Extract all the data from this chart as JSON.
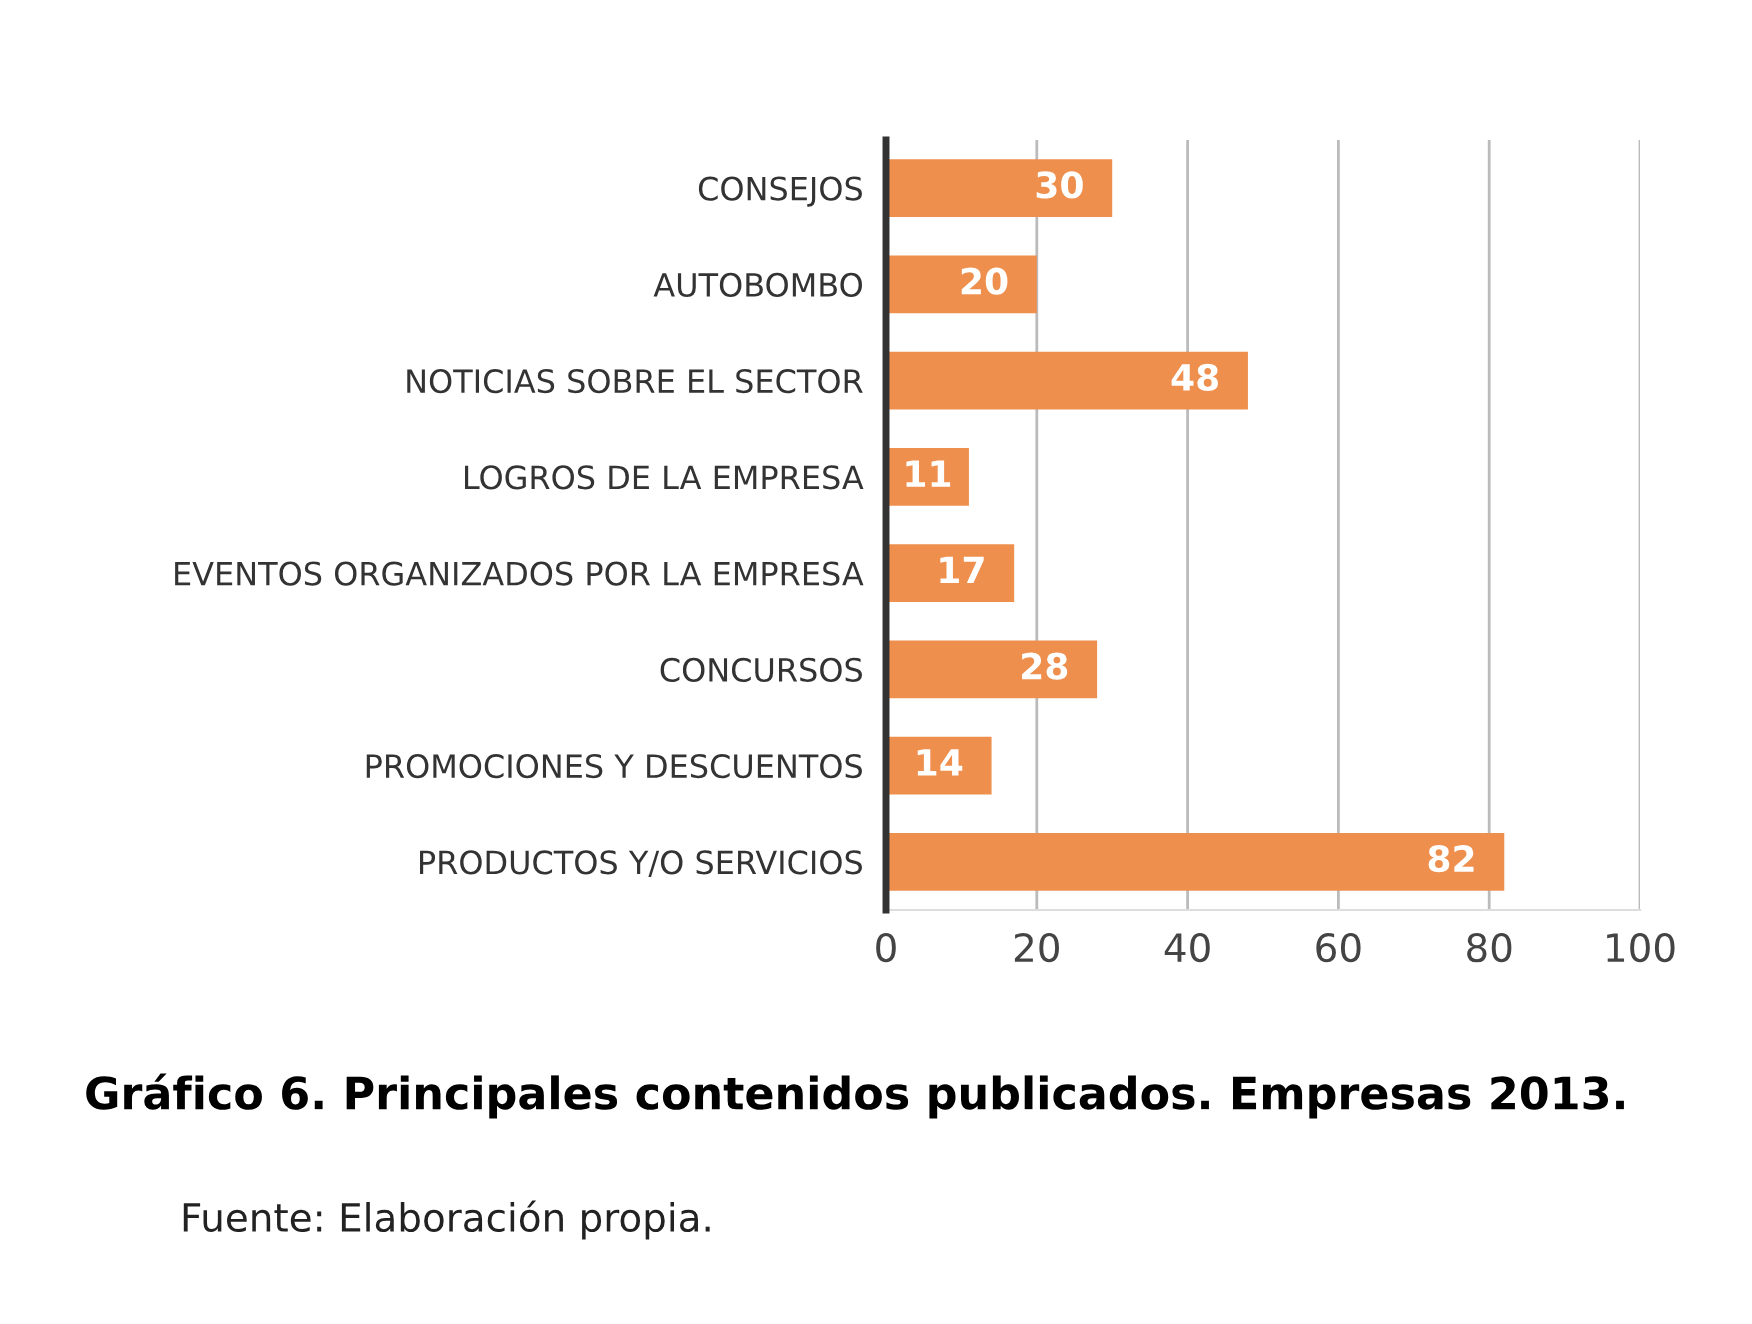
{
  "chart_data": {
    "type": "bar",
    "orientation": "horizontal",
    "title": "Gráfico 6. Principales contenidos publicados. Empresas 2013.",
    "categories": [
      "CONSEJOS",
      "AUTOBOMBO",
      "NOTICIAS SOBRE EL SECTOR",
      "LOGROS DE LA EMPRESA",
      "EVENTOS ORGANIZADOS POR LA EMPRESA",
      "CONCURSOS",
      "PROMOCIONES Y DESCUENTOS",
      "PRODUCTOS Y/O SERVICIOS"
    ],
    "values": [
      30,
      20,
      48,
      11,
      17,
      28,
      14,
      82
    ],
    "color": "#ef8f4d",
    "data_labels": true,
    "xlim": [
      0,
      100
    ],
    "xticks": [
      0,
      20,
      40,
      60,
      80,
      100
    ],
    "grid": "x",
    "annotations": [
      "Fuente: Elaboración propia."
    ]
  }
}
